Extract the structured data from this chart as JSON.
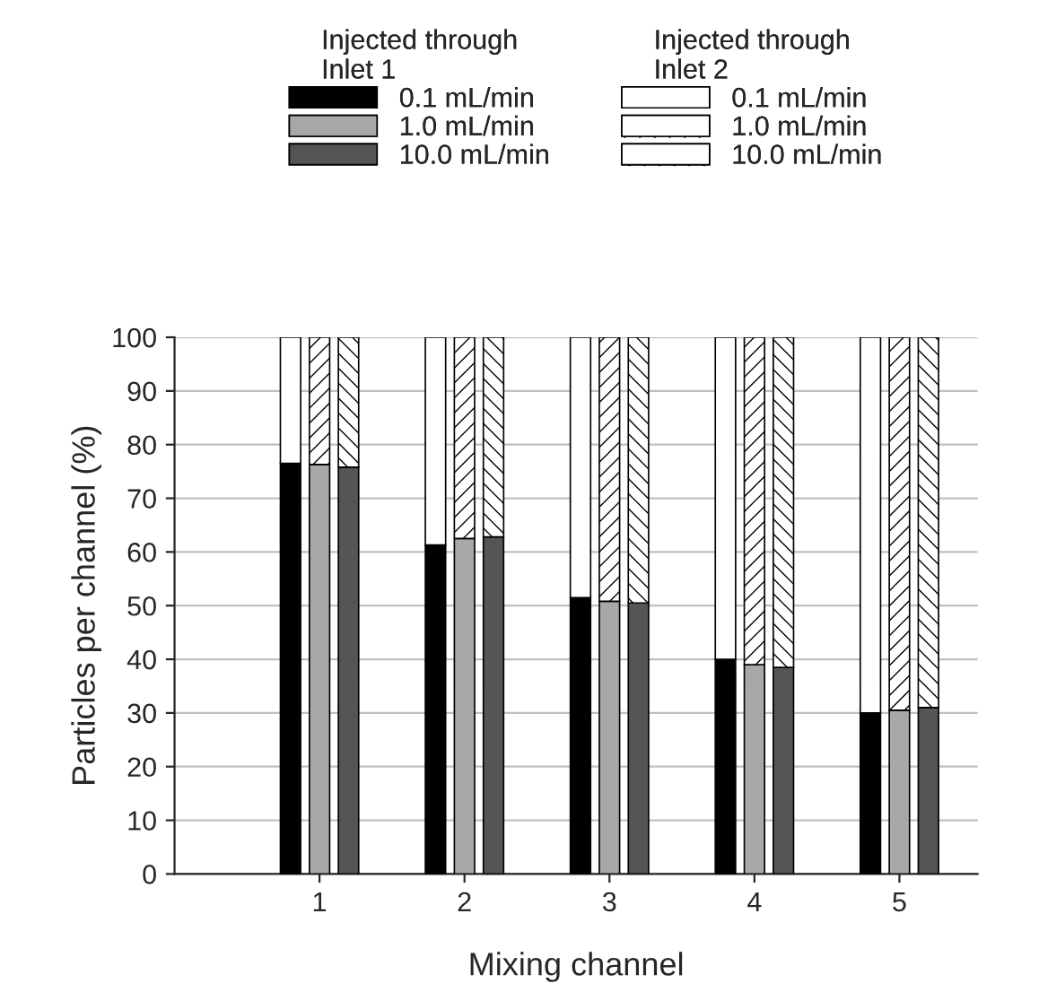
{
  "chart_data": {
    "type": "bar",
    "stacked": true,
    "xlabel": "Mixing channel",
    "ylabel": "Particles per channel (%)",
    "categories": [
      null,
      null,
      "1",
      null,
      null,
      null,
      null,
      "2",
      null,
      null,
      null,
      null,
      "3",
      null,
      null,
      null,
      null,
      "4",
      null,
      null,
      null,
      null,
      "5",
      null,
      null
    ],
    "series": [
      {
        "name": "0.1 mL/min",
        "color": "#000000",
        "values": [
          null,
          76.5,
          null,
          null,
          null,
          null,
          61.3,
          null,
          null,
          null,
          null,
          51.5,
          null,
          null,
          null,
          null,
          40.0,
          null,
          null,
          null,
          null,
          30.0,
          null,
          null,
          null
        ]
      },
      {
        "name": "1.0 mL/min",
        "color": "#a8a8a8",
        "values": [
          null,
          null,
          76.3,
          null,
          null,
          null,
          null,
          62.5,
          null,
          null,
          null,
          null,
          50.8,
          null,
          null,
          null,
          null,
          39.0,
          null,
          null,
          null,
          null,
          30.5,
          null,
          null
        ]
      },
      {
        "name": "10.0 mL/min",
        "color": "#555555",
        "values": [
          null,
          null,
          null,
          75.8,
          null,
          null,
          null,
          null,
          62.8,
          null,
          null,
          null,
          null,
          50.5,
          null,
          null,
          null,
          null,
          38.5,
          null,
          null,
          null,
          null,
          31.0,
          null
        ]
      },
      {
        "name": "0.1 mL/min",
        "color": "#ffffff",
        "values": [
          null,
          23.5,
          null,
          null,
          null,
          null,
          38.7,
          null,
          null,
          null,
          null,
          48.5,
          null,
          null,
          null,
          null,
          60.0,
          null,
          null,
          null,
          null,
          70.0,
          null,
          null,
          null
        ]
      },
      {
        "name": "1.0 mL/min",
        "color": "#ffffff",
        "values": [
          null,
          null,
          23.7,
          null,
          null,
          null,
          null,
          37.5,
          null,
          null,
          null,
          null,
          49.2,
          null,
          null,
          null,
          null,
          61.0,
          null,
          null,
          null,
          null,
          69.5,
          null,
          null
        ]
      },
      {
        "name": "10.0 mL/min",
        "color": "#ffffff",
        "values": [
          null,
          null,
          null,
          24.2,
          null,
          null,
          null,
          null,
          37.2,
          null,
          null,
          null,
          null,
          49.5,
          null,
          null,
          null,
          null,
          61.5,
          null,
          null,
          null,
          null,
          69.0,
          null
        ]
      }
    ],
    "ylim": [
      0,
      100
    ],
    "yticks": [
      0,
      10,
      20,
      30,
      40,
      50,
      60,
      70,
      80,
      90,
      100
    ],
    "grid": "y",
    "legend": "top",
    "annotations": [
      "Injected through\nInlet 1",
      "Injected through\nInlet 2"
    ]
  }
}
